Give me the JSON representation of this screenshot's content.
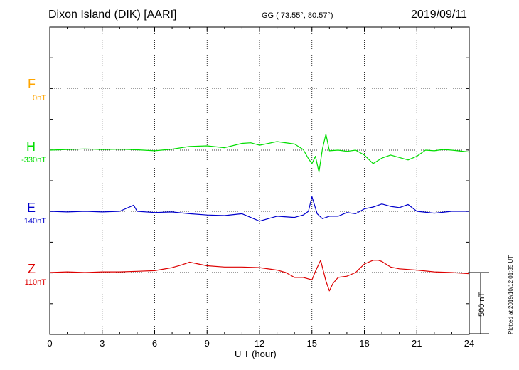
{
  "header": {
    "station": "Dixon Island (DIK)  [AARI]",
    "coords": "GG ( 73.55°,  80.57°)",
    "date": "2019/09/11"
  },
  "footer": {
    "plotted": "Plotted at 2019/10/12 01:35 UT",
    "scale_label": "500 nT"
  },
  "colors": {
    "F": "#ffa500",
    "H": "#00dd00",
    "E": "#0000cc",
    "Z": "#dd0000"
  },
  "chart_data": {
    "type": "line",
    "title": "Dixon Island (DIK)  [AARI]",
    "xlabel": "U T (hour)",
    "ylabel": "",
    "xlim": [
      0,
      24
    ],
    "x_ticks": [
      "0",
      "3",
      "6",
      "9",
      "12",
      "15",
      "18",
      "21",
      "24"
    ],
    "scale_bar_nT": 500,
    "grid": true,
    "components": [
      {
        "name": "F",
        "baseline_label": "0nT",
        "color": "#ffa500",
        "x": [],
        "y": []
      },
      {
        "name": "H",
        "baseline_label": "-330nT",
        "color": "#00dd00",
        "x": [
          0,
          1,
          2,
          3,
          4,
          5,
          6,
          7,
          8,
          9,
          10,
          11,
          11.5,
          12,
          13,
          14,
          14.5,
          14.8,
          15,
          15.2,
          15.4,
          15.6,
          15.8,
          16,
          16.5,
          17,
          17.5,
          18,
          18.5,
          19,
          19.5,
          20,
          20.5,
          21,
          21.5,
          22,
          22.5,
          23,
          24
        ],
        "y": [
          0,
          5,
          10,
          5,
          8,
          3,
          -5,
          8,
          30,
          35,
          20,
          55,
          60,
          40,
          70,
          50,
          5,
          -70,
          -110,
          -50,
          -180,
          10,
          130,
          -5,
          0,
          -10,
          0,
          -40,
          -110,
          -65,
          -40,
          -60,
          -80,
          -50,
          0,
          -5,
          5,
          0,
          -15
        ]
      },
      {
        "name": "E",
        "baseline_label": "140nT",
        "color": "#0000cc",
        "x": [
          0,
          1,
          2,
          3,
          4,
          4.8,
          5,
          6,
          7,
          8,
          9,
          10,
          11,
          12,
          13,
          14,
          14.5,
          14.8,
          15,
          15.3,
          15.6,
          16,
          16.5,
          17,
          17.5,
          18,
          18.5,
          19,
          19.5,
          20,
          20.5,
          21,
          22,
          23,
          24
        ],
        "y": [
          0,
          -5,
          0,
          -5,
          0,
          50,
          0,
          -10,
          -5,
          -20,
          -30,
          -35,
          -20,
          -80,
          -40,
          -50,
          -30,
          0,
          120,
          -20,
          -60,
          -40,
          -40,
          -10,
          -20,
          20,
          35,
          60,
          40,
          30,
          55,
          0,
          -15,
          0,
          0
        ]
      },
      {
        "name": "Z",
        "baseline_label": "110nT",
        "color": "#dd0000",
        "x": [
          0,
          1,
          2,
          3,
          4,
          5,
          6,
          7,
          7.5,
          8,
          8.5,
          9,
          10,
          11,
          12,
          13,
          13.5,
          14,
          14.5,
          15,
          15.2,
          15.5,
          15.8,
          16,
          16.2,
          16.5,
          17,
          17.5,
          18,
          18.5,
          18.8,
          19,
          19.5,
          20,
          21,
          22,
          23,
          24
        ],
        "y": [
          0,
          5,
          0,
          5,
          5,
          10,
          15,
          40,
          60,
          85,
          70,
          55,
          45,
          45,
          40,
          20,
          0,
          -40,
          -40,
          -60,
          10,
          100,
          -70,
          -150,
          -90,
          -40,
          -30,
          0,
          70,
          100,
          100,
          90,
          45,
          30,
          20,
          5,
          0,
          -10
        ]
      }
    ]
  }
}
